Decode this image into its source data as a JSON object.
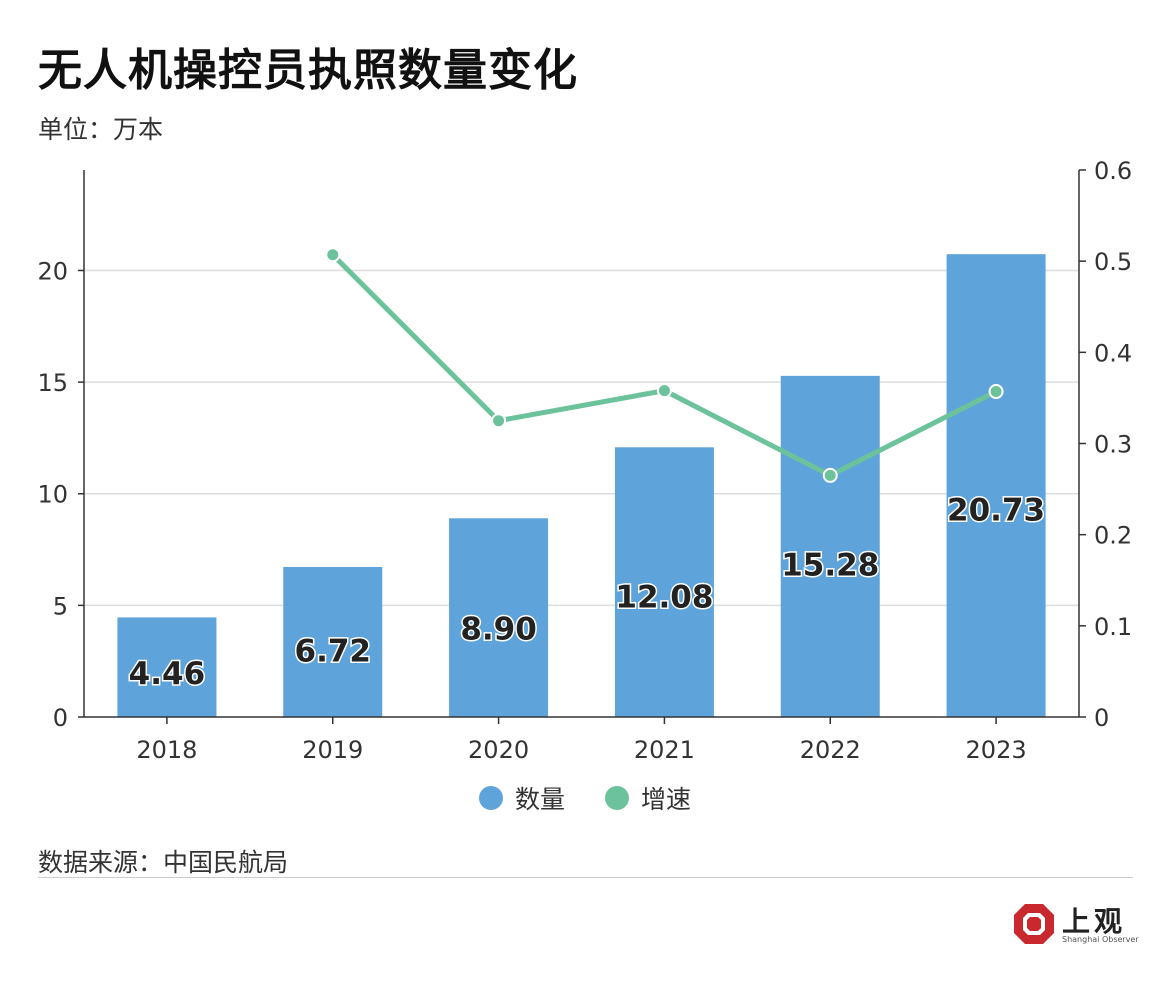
{
  "header": {
    "title": "无人机操控员执照数量变化",
    "unit": "单位：万本"
  },
  "legend": {
    "items": [
      {
        "label": "数量",
        "color": "#5ea3da"
      },
      {
        "label": "增速",
        "color": "#6bc29b"
      }
    ]
  },
  "footer": {
    "source": "数据来源：中国民航局"
  },
  "brand": {
    "name": "上观",
    "sub": "Shanghai Observer",
    "logo_color": "#c8282e"
  },
  "chart_data": {
    "type": "bar",
    "categories": [
      "2018",
      "2019",
      "2020",
      "2021",
      "2022",
      "2023"
    ],
    "series": [
      {
        "name": "数量",
        "type": "bar",
        "axis": "left",
        "color": "#5ea3da",
        "values": [
          4.46,
          6.72,
          8.9,
          12.08,
          15.28,
          20.73
        ],
        "labels": [
          "4.46",
          "6.72",
          "8.90",
          "12.08",
          "15.28",
          "20.73"
        ]
      },
      {
        "name": "增速",
        "type": "line",
        "axis": "right",
        "color": "#6bc29b",
        "values": [
          null,
          0.507,
          0.325,
          0.358,
          0.265,
          0.357
        ]
      }
    ],
    "y_left": {
      "min": 0,
      "max": 24.5,
      "ticks": [
        0,
        5,
        10,
        15,
        20
      ]
    },
    "y_right": {
      "min": 0,
      "max": 0.6,
      "ticks": [
        0,
        0.1,
        0.2,
        0.3,
        0.4,
        0.5,
        0.6
      ],
      "tick_labels": [
        "0",
        "0.1",
        "0.2",
        "0.3",
        "0.4",
        "0.5",
        "0.6"
      ]
    },
    "grid": true,
    "legend_position": "bottom"
  }
}
